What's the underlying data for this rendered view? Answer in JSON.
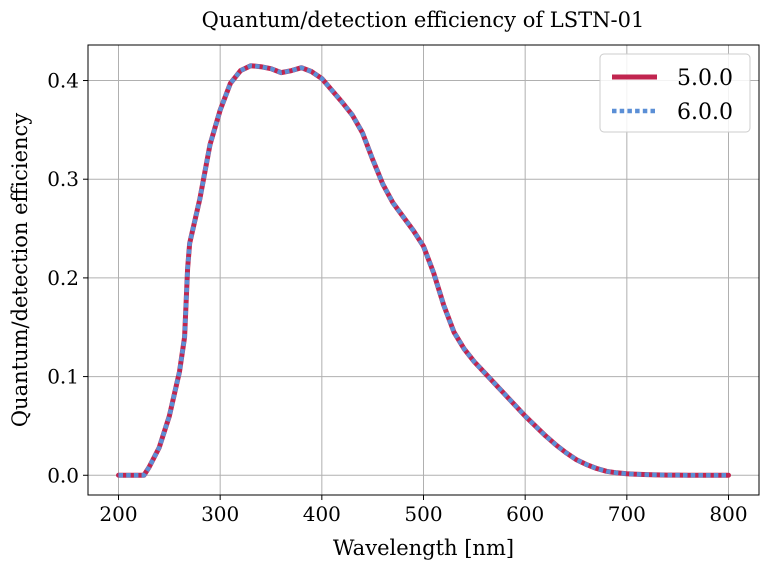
{
  "chart_data": {
    "type": "line",
    "title": "Quantum/detection efficiency of LSTN-01",
    "xlabel": "Wavelength [nm]",
    "ylabel": "Quantum/detection efficiency",
    "xlim": [
      170,
      830
    ],
    "ylim": [
      -0.02,
      0.436
    ],
    "xticks": [
      200,
      300,
      400,
      500,
      600,
      700,
      800
    ],
    "xtick_labels": [
      "200",
      "300",
      "400",
      "500",
      "600",
      "700",
      "800"
    ],
    "yticks": [
      0.0,
      0.1,
      0.2,
      0.3,
      0.4
    ],
    "ytick_labels": [
      "0.0",
      "0.1",
      "0.2",
      "0.3",
      "0.4"
    ],
    "grid": true,
    "legend_position": "top-right",
    "x": [
      200,
      210,
      220,
      225,
      230,
      240,
      250,
      260,
      265,
      268,
      270,
      280,
      290,
      300,
      310,
      320,
      330,
      340,
      350,
      360,
      370,
      380,
      390,
      400,
      410,
      420,
      430,
      440,
      450,
      460,
      470,
      480,
      490,
      500,
      510,
      520,
      530,
      540,
      550,
      560,
      570,
      580,
      590,
      600,
      610,
      620,
      630,
      640,
      650,
      660,
      670,
      680,
      690,
      700,
      710,
      720,
      730,
      740,
      750,
      760,
      770,
      780,
      790,
      800
    ],
    "series": [
      {
        "name": "5.0.0",
        "color": "#c1254f",
        "style": "solid",
        "values": [
          0.0,
          0.0,
          0.0,
          0.0,
          0.008,
          0.028,
          0.06,
          0.105,
          0.14,
          0.21,
          0.235,
          0.28,
          0.335,
          0.37,
          0.397,
          0.41,
          0.415,
          0.414,
          0.412,
          0.408,
          0.41,
          0.413,
          0.409,
          0.402,
          0.39,
          0.378,
          0.365,
          0.347,
          0.32,
          0.295,
          0.276,
          0.262,
          0.248,
          0.232,
          0.205,
          0.172,
          0.145,
          0.128,
          0.115,
          0.104,
          0.093,
          0.082,
          0.071,
          0.06,
          0.05,
          0.04,
          0.031,
          0.023,
          0.016,
          0.011,
          0.007,
          0.004,
          0.0025,
          0.0015,
          0.001,
          0.0006,
          0.0004,
          0.0002,
          0.0001,
          0.0,
          0.0,
          0.0,
          0.0,
          0.0
        ]
      },
      {
        "name": "6.0.0",
        "color": "#5b8fd6",
        "style": "dotted",
        "values": [
          0.0,
          0.0,
          0.0,
          0.0,
          0.008,
          0.028,
          0.06,
          0.105,
          0.14,
          0.21,
          0.235,
          0.28,
          0.335,
          0.37,
          0.397,
          0.41,
          0.415,
          0.414,
          0.412,
          0.408,
          0.41,
          0.413,
          0.409,
          0.402,
          0.39,
          0.378,
          0.365,
          0.347,
          0.32,
          0.295,
          0.276,
          0.262,
          0.248,
          0.232,
          0.205,
          0.172,
          0.145,
          0.128,
          0.115,
          0.104,
          0.093,
          0.082,
          0.071,
          0.06,
          0.05,
          0.04,
          0.031,
          0.023,
          0.016,
          0.011,
          0.007,
          0.004,
          0.0025,
          0.0015,
          0.001,
          0.0006,
          0.0004,
          0.0002,
          0.0001,
          0.0,
          0.0,
          0.0,
          0.0,
          0.0
        ]
      }
    ]
  }
}
